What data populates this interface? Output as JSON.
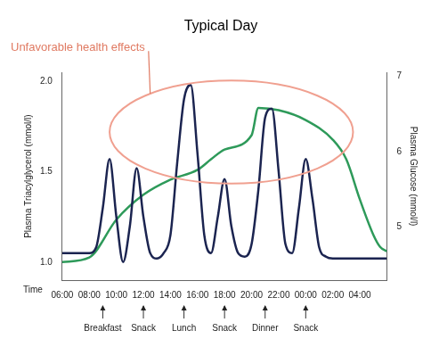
{
  "chart_data": {
    "type": "line",
    "title": "Typical Day",
    "annotation": "Unfavorable health effects",
    "x_label": "Time",
    "y_label": "Plasma Triacylglycerol (mmol/l)",
    "y2_label": "Plasma Glucose (mmol/l)",
    "xlim": [
      6,
      30
    ],
    "xticks": [
      {
        "value": 6,
        "label": "06:00"
      },
      {
        "value": 8,
        "label": "08:00"
      },
      {
        "value": 10,
        "label": "10:00"
      },
      {
        "value": 12,
        "label": "12:00"
      },
      {
        "value": 14,
        "label": "14:00"
      },
      {
        "value": 16,
        "label": "16:00"
      },
      {
        "value": 18,
        "label": "18:00"
      },
      {
        "value": 20,
        "label": "20:00"
      },
      {
        "value": 22,
        "label": "22:00"
      },
      {
        "value": 24,
        "label": "00:00"
      },
      {
        "value": 26,
        "label": "02:00"
      },
      {
        "value": 28,
        "label": "04:00"
      }
    ],
    "ylim": [
      0.9,
      2.05
    ],
    "yticks": [
      {
        "value": 1,
        "label": "1.0"
      },
      1.5,
      {
        "value": 2,
        "label": "2.0"
      }
    ],
    "y2lim": [
      4.3,
      7.05
    ],
    "y2ticks": [
      5,
      6,
      7
    ],
    "grid": false,
    "series": [
      {
        "name": "Plasma Triacylglycerol",
        "color": "#1b2450",
        "axis": "y",
        "x": [
          6,
          7,
          8,
          8.5,
          9,
          9.5,
          10,
          10.5,
          11,
          11.5,
          12,
          12.5,
          13,
          13.5,
          14,
          14.5,
          15,
          15.5,
          16,
          16.5,
          17,
          17.5,
          18,
          18.5,
          19,
          19.5,
          20,
          20.5,
          21,
          21.5,
          22,
          22.5,
          23,
          23.5,
          24,
          24.5,
          25,
          25.5,
          26,
          28,
          30
        ],
        "values": [
          1.05,
          1.05,
          1.05,
          1.08,
          1.3,
          1.57,
          1.25,
          1.0,
          1.2,
          1.52,
          1.25,
          1.05,
          1.02,
          1.05,
          1.15,
          1.55,
          1.9,
          1.98,
          1.6,
          1.15,
          1.05,
          1.25,
          1.46,
          1.2,
          1.05,
          1.03,
          1.1,
          1.4,
          1.8,
          1.85,
          1.5,
          1.1,
          1.05,
          1.3,
          1.57,
          1.35,
          1.08,
          1.03,
          1.02,
          1.02,
          1.02
        ]
      },
      {
        "name": "Plasma Glucose",
        "color": "#2e9a5a",
        "axis": "y2",
        "x": [
          6,
          8,
          10,
          12,
          14,
          16,
          17,
          18,
          20,
          20.5,
          22,
          24,
          26,
          27,
          28,
          29,
          29.5,
          30
        ],
        "values": [
          4.54,
          4.6,
          5.1,
          5.43,
          5.63,
          5.76,
          5.9,
          6.03,
          6.22,
          6.58,
          6.55,
          6.42,
          6.16,
          5.9,
          5.37,
          4.9,
          4.74,
          4.68
        ]
      }
    ],
    "meals": [
      {
        "label": "Breakfast",
        "x": 9
      },
      {
        "label": "Snack",
        "x": 12
      },
      {
        "label": "Lunch",
        "x": 15
      },
      {
        "label": "Snack",
        "x": 18
      },
      {
        "label": "Dinner",
        "x": 21
      },
      {
        "label": "Snack",
        "x": 24
      }
    ]
  }
}
